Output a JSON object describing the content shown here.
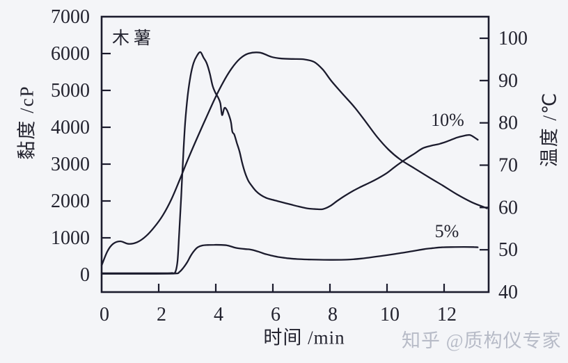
{
  "page": {
    "background": "#f4f5f8"
  },
  "watermark": "知乎 @质构仪专家",
  "chart_data": {
    "type": "line",
    "title": "木薯",
    "xlabel": "时间 /min",
    "ylabel_left": "黏度 /cP",
    "ylabel_right": "温度 /℃",
    "xlim": [
      0,
      13.56
    ],
    "ylim_left": [
      0,
      7000
    ],
    "ylim_right": [
      40,
      105
    ],
    "x_ticks": [
      0,
      2,
      4,
      6,
      8,
      10,
      12
    ],
    "y_ticks_left": [
      0,
      1000,
      2000,
      3000,
      4000,
      5000,
      6000,
      7000
    ],
    "y_ticks_right": [
      40,
      50,
      60,
      70,
      80,
      90,
      100
    ],
    "grid": false,
    "legend_position": "inline-labels",
    "line_color": "#1b1b2d",
    "axis_color": "#1b1b2d",
    "series": [
      {
        "name": "viscosity-10pct",
        "label": "10%",
        "axis": "left",
        "unit": "cP",
        "points": [
          [
            0,
            40
          ],
          [
            1.2,
            40
          ],
          [
            2.1,
            40
          ],
          [
            2.45,
            45
          ],
          [
            2.58,
            70
          ],
          [
            2.66,
            380
          ],
          [
            2.72,
            1150
          ],
          [
            2.79,
            2150
          ],
          [
            2.86,
            3250
          ],
          [
            2.93,
            4150
          ],
          [
            3.01,
            4820
          ],
          [
            3.11,
            5370
          ],
          [
            3.22,
            5740
          ],
          [
            3.34,
            5940
          ],
          [
            3.46,
            6040
          ],
          [
            3.57,
            5890
          ],
          [
            3.68,
            5740
          ],
          [
            3.79,
            5460
          ],
          [
            3.89,
            5120
          ],
          [
            3.99,
            4930
          ],
          [
            4.08,
            4810
          ],
          [
            4.16,
            4650
          ],
          [
            4.22,
            4330
          ],
          [
            4.3,
            4520
          ],
          [
            4.38,
            4480
          ],
          [
            4.46,
            4330
          ],
          [
            4.53,
            4150
          ],
          [
            4.58,
            3880
          ],
          [
            4.65,
            3800
          ],
          [
            4.74,
            3570
          ],
          [
            4.83,
            3350
          ],
          [
            4.92,
            3050
          ],
          [
            5.02,
            2780
          ],
          [
            5.14,
            2550
          ],
          [
            5.27,
            2400
          ],
          [
            5.42,
            2260
          ],
          [
            5.58,
            2160
          ],
          [
            5.78,
            2080
          ],
          [
            6.0,
            2030
          ],
          [
            6.3,
            1970
          ],
          [
            6.6,
            1910
          ],
          [
            6.9,
            1850
          ],
          [
            7.2,
            1800
          ],
          [
            7.5,
            1780
          ],
          [
            7.75,
            1780
          ],
          [
            8.0,
            1860
          ],
          [
            8.25,
            2000
          ],
          [
            8.5,
            2130
          ],
          [
            8.8,
            2270
          ],
          [
            9.1,
            2390
          ],
          [
            9.4,
            2500
          ],
          [
            9.7,
            2620
          ],
          [
            10.0,
            2760
          ],
          [
            10.3,
            2940
          ],
          [
            10.65,
            3130
          ],
          [
            10.95,
            3280
          ],
          [
            11.25,
            3430
          ],
          [
            11.55,
            3500
          ],
          [
            11.85,
            3550
          ],
          [
            12.15,
            3630
          ],
          [
            12.45,
            3720
          ],
          [
            12.7,
            3770
          ],
          [
            12.9,
            3790
          ],
          [
            13.05,
            3730
          ],
          [
            13.18,
            3660
          ]
        ]
      },
      {
        "name": "viscosity-5pct",
        "label": "5%",
        "axis": "left",
        "unit": "cP",
        "points": [
          [
            0,
            25
          ],
          [
            1.5,
            25
          ],
          [
            2.55,
            30
          ],
          [
            2.72,
            70
          ],
          [
            2.86,
            185
          ],
          [
            3.0,
            340
          ],
          [
            3.12,
            510
          ],
          [
            3.25,
            655
          ],
          [
            3.38,
            750
          ],
          [
            3.52,
            790
          ],
          [
            3.72,
            805
          ],
          [
            3.95,
            810
          ],
          [
            4.18,
            808
          ],
          [
            4.38,
            797
          ],
          [
            4.55,
            762
          ],
          [
            4.7,
            728
          ],
          [
            4.88,
            708
          ],
          [
            5.05,
            695
          ],
          [
            5.2,
            685
          ],
          [
            5.35,
            658
          ],
          [
            5.52,
            618
          ],
          [
            5.72,
            565
          ],
          [
            5.92,
            525
          ],
          [
            6.2,
            480
          ],
          [
            6.5,
            448
          ],
          [
            6.85,
            425
          ],
          [
            7.25,
            412
          ],
          [
            7.65,
            405
          ],
          [
            8.1,
            402
          ],
          [
            8.6,
            408
          ],
          [
            9.1,
            438
          ],
          [
            9.6,
            488
          ],
          [
            10.05,
            535
          ],
          [
            10.5,
            588
          ],
          [
            10.9,
            640
          ],
          [
            11.3,
            692
          ],
          [
            11.6,
            720
          ],
          [
            11.9,
            742
          ],
          [
            12.25,
            750
          ],
          [
            12.7,
            752
          ],
          [
            13.05,
            750
          ],
          [
            13.18,
            744
          ]
        ]
      },
      {
        "name": "temperature",
        "label": "",
        "axis": "right",
        "unit": "℃",
        "points": [
          [
            0,
            46.3
          ],
          [
            0.2,
            49.6
          ],
          [
            0.4,
            51.4
          ],
          [
            0.65,
            52.0
          ],
          [
            0.95,
            51.4
          ],
          [
            1.25,
            51.8
          ],
          [
            1.55,
            53.2
          ],
          [
            1.85,
            55.4
          ],
          [
            2.15,
            58.2
          ],
          [
            2.45,
            62.0
          ],
          [
            2.75,
            66.8
          ],
          [
            3.05,
            71.8
          ],
          [
            3.35,
            76.5
          ],
          [
            3.65,
            81.0
          ],
          [
            3.95,
            85.5
          ],
          [
            4.25,
            89.5
          ],
          [
            4.55,
            92.8
          ],
          [
            4.85,
            95.2
          ],
          [
            5.15,
            96.4
          ],
          [
            5.55,
            96.6
          ],
          [
            5.95,
            95.6
          ],
          [
            6.3,
            95.2
          ],
          [
            6.7,
            95.1
          ],
          [
            7.1,
            95.0
          ],
          [
            7.45,
            94.4
          ],
          [
            7.75,
            92.6
          ],
          [
            8.05,
            89.9
          ],
          [
            8.45,
            86.8
          ],
          [
            8.85,
            83.8
          ],
          [
            9.25,
            80.3
          ],
          [
            9.65,
            76.7
          ],
          [
            10.05,
            73.7
          ],
          [
            10.45,
            71.4
          ],
          [
            10.95,
            69.3
          ],
          [
            11.45,
            67.2
          ],
          [
            11.95,
            65.2
          ],
          [
            12.45,
            63.1
          ],
          [
            12.95,
            61.3
          ],
          [
            13.35,
            60.2
          ],
          [
            13.5,
            59.8
          ]
        ]
      }
    ]
  }
}
